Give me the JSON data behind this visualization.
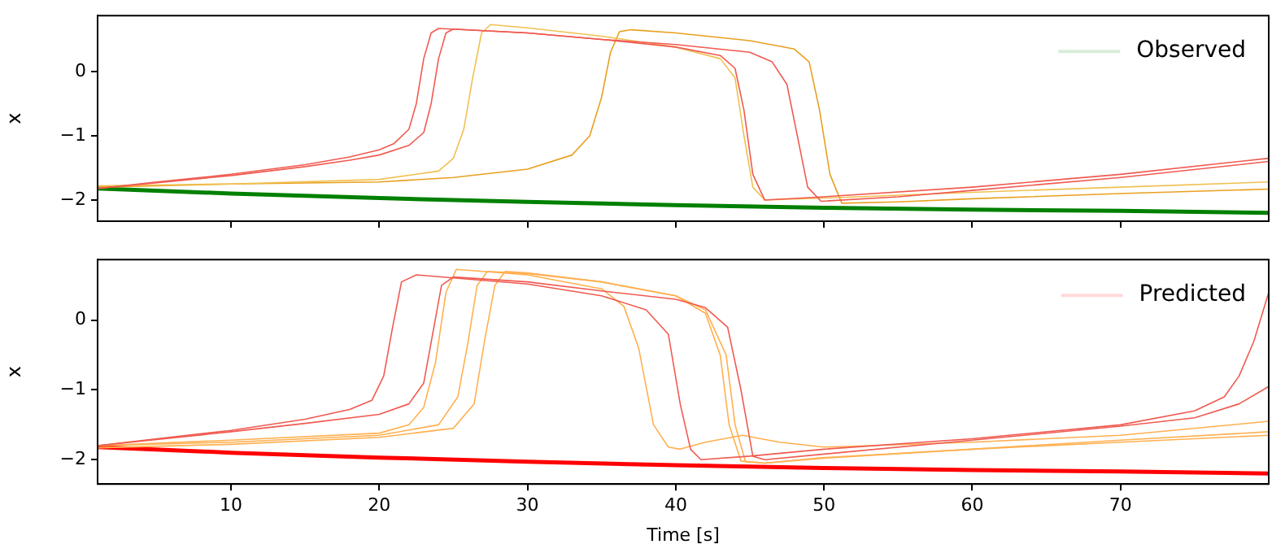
{
  "chart_data": [
    {
      "type": "line",
      "ylabel": "x",
      "xlim": [
        1,
        80
      ],
      "xticks": [
        10,
        20,
        30,
        40,
        50,
        60,
        70
      ],
      "ylim": [
        -2.33,
        0.87
      ],
      "yticks": [
        -2,
        -1,
        0
      ],
      "tick_labels": "y",
      "grid": false,
      "legend": "top right",
      "line_style": "solid",
      "marker": "none",
      "series": [
        {
          "color": "#f05a50",
          "x": [
            1,
            5,
            10,
            15,
            18,
            20,
            21,
            22,
            22.5,
            23,
            23.5,
            24,
            30,
            35,
            40,
            43,
            44,
            44.6,
            45.2,
            46,
            50,
            60,
            70,
            80
          ],
          "values": [
            -1.82,
            -1.72,
            -1.6,
            -1.45,
            -1.33,
            -1.22,
            -1.12,
            -0.9,
            -0.5,
            0.2,
            0.6,
            0.67,
            0.6,
            0.5,
            0.38,
            0.25,
            0.05,
            -0.6,
            -1.6,
            -2.0,
            -1.95,
            -1.8,
            -1.6,
            -1.35
          ]
        },
        {
          "color": "#f05a50",
          "x": [
            1,
            5,
            10,
            15,
            18,
            20,
            22,
            23,
            23.5,
            24,
            24.5,
            25,
            30,
            35,
            40,
            45,
            46.5,
            47.5,
            48.2,
            48.9,
            49.8,
            55,
            60,
            70,
            80
          ],
          "values": [
            -1.82,
            -1.73,
            -1.62,
            -1.48,
            -1.38,
            -1.3,
            -1.15,
            -0.95,
            -0.5,
            0.2,
            0.6,
            0.66,
            0.6,
            0.5,
            0.42,
            0.3,
            0.15,
            -0.2,
            -1.0,
            -1.8,
            -2.02,
            -1.95,
            -1.85,
            -1.65,
            -1.4
          ]
        },
        {
          "color": "#f0c050",
          "x": [
            1,
            10,
            20,
            24,
            25,
            25.7,
            26.3,
            26.9,
            27.5,
            30,
            35,
            40,
            43,
            44,
            44.6,
            45.2,
            46,
            50,
            60,
            70,
            80
          ],
          "values": [
            -1.78,
            -1.75,
            -1.68,
            -1.55,
            -1.35,
            -0.9,
            -0.1,
            0.6,
            0.73,
            0.68,
            0.55,
            0.38,
            0.2,
            -0.1,
            -1.0,
            -1.8,
            -2.0,
            -1.97,
            -1.88,
            -1.8,
            -1.72
          ]
        },
        {
          "color": "#e8a020",
          "x": [
            1,
            10,
            20,
            25,
            30,
            33,
            34.2,
            35,
            35.6,
            36.2,
            37,
            40,
            45,
            48,
            49,
            49.7,
            50.4,
            51.2,
            55,
            60,
            70,
            80
          ],
          "values": [
            -1.8,
            -1.75,
            -1.72,
            -1.65,
            -1.52,
            -1.3,
            -1.0,
            -0.4,
            0.3,
            0.62,
            0.65,
            0.6,
            0.48,
            0.35,
            0.15,
            -0.6,
            -1.6,
            -2.05,
            -2.03,
            -1.98,
            -1.9,
            -1.83
          ]
        },
        {
          "name": "Observed",
          "color": "#008000",
          "x": [
            1,
            10,
            20,
            30,
            40,
            50,
            60,
            70,
            80
          ],
          "values": [
            -1.82,
            -1.9,
            -1.97,
            -2.03,
            -2.08,
            -2.12,
            -2.15,
            -2.17,
            -2.2
          ]
        }
      ]
    },
    {
      "type": "line",
      "xlabel": "Time [s]",
      "ylabel": "x",
      "xlim": [
        1,
        80
      ],
      "xticks": [
        10,
        20,
        30,
        40,
        50,
        60,
        70
      ],
      "ylim": [
        -2.35,
        0.87
      ],
      "yticks": [
        -2,
        -1,
        0
      ],
      "grid": false,
      "legend": "top right",
      "line_style": "solid",
      "marker": "none",
      "series": [
        {
          "color": "#f05a50",
          "x": [
            1,
            5,
            10,
            15,
            18,
            19.5,
            20.3,
            20.9,
            21.5,
            22.5,
            30,
            35,
            38,
            39.5,
            40.3,
            41,
            41.7,
            45,
            50,
            60,
            70,
            75,
            77,
            78,
            79,
            80
          ],
          "values": [
            -1.8,
            -1.7,
            -1.58,
            -1.42,
            -1.28,
            -1.15,
            -0.8,
            -0.1,
            0.55,
            0.65,
            0.52,
            0.35,
            0.15,
            -0.2,
            -1.2,
            -1.85,
            -2.0,
            -1.95,
            -1.85,
            -1.7,
            -1.5,
            -1.3,
            -1.1,
            -0.8,
            -0.3,
            0.4
          ]
        },
        {
          "color": "#f05a50",
          "x": [
            1,
            10,
            15,
            20,
            22,
            23,
            23.6,
            24.2,
            25,
            30,
            35,
            40,
            42,
            43.5,
            44.4,
            45.2,
            46,
            50,
            60,
            70,
            75,
            78,
            80
          ],
          "values": [
            -1.8,
            -1.6,
            -1.48,
            -1.35,
            -1.2,
            -0.9,
            -0.2,
            0.5,
            0.62,
            0.55,
            0.42,
            0.3,
            0.18,
            -0.1,
            -1.0,
            -1.95,
            -2.0,
            -1.92,
            -1.72,
            -1.52,
            -1.4,
            -1.2,
            -0.95
          ]
        },
        {
          "color": "#ffb050",
          "x": [
            1,
            10,
            20,
            22,
            23,
            23.8,
            24.5,
            25.2,
            30,
            35,
            36.5,
            37.5,
            38.5,
            39.5,
            40.3,
            42,
            44.5,
            47,
            50,
            60,
            70,
            80
          ],
          "values": [
            -1.8,
            -1.72,
            -1.62,
            -1.5,
            -1.25,
            -0.6,
            0.4,
            0.73,
            0.65,
            0.45,
            0.2,
            -0.4,
            -1.5,
            -1.82,
            -1.85,
            -1.75,
            -1.65,
            -1.75,
            -1.82,
            -1.75,
            -1.65,
            -1.45
          ]
        },
        {
          "color": "#ffb050",
          "x": [
            1,
            10,
            20,
            24,
            25.3,
            26,
            26.6,
            27.3,
            30,
            35,
            40,
            42,
            43,
            43.6,
            44.4,
            46,
            50,
            60,
            70,
            80
          ],
          "values": [
            -1.8,
            -1.75,
            -1.65,
            -1.5,
            -1.1,
            -0.3,
            0.5,
            0.7,
            0.67,
            0.55,
            0.35,
            0.1,
            -0.5,
            -1.5,
            -2.02,
            -2.05,
            -1.97,
            -1.85,
            -1.72,
            -1.6
          ]
        },
        {
          "color": "#ffb050",
          "x": [
            1,
            10,
            20,
            25,
            26.4,
            27.1,
            27.8,
            28.5,
            30,
            35,
            40,
            42,
            43.4,
            44,
            44.7,
            46,
            50,
            60,
            70,
            80
          ],
          "values": [
            -1.83,
            -1.78,
            -1.68,
            -1.55,
            -1.2,
            -0.3,
            0.5,
            0.7,
            0.68,
            0.55,
            0.35,
            0.15,
            -0.5,
            -1.5,
            -2.03,
            -2.05,
            -1.98,
            -1.85,
            -1.75,
            -1.65
          ]
        },
        {
          "name": "Predicted",
          "color": "#ff0000",
          "x": [
            1,
            10,
            20,
            30,
            40,
            50,
            60,
            70,
            80
          ],
          "values": [
            -1.82,
            -1.9,
            -1.97,
            -2.03,
            -2.08,
            -2.12,
            -2.15,
            -2.17,
            -2.2
          ]
        }
      ]
    }
  ]
}
